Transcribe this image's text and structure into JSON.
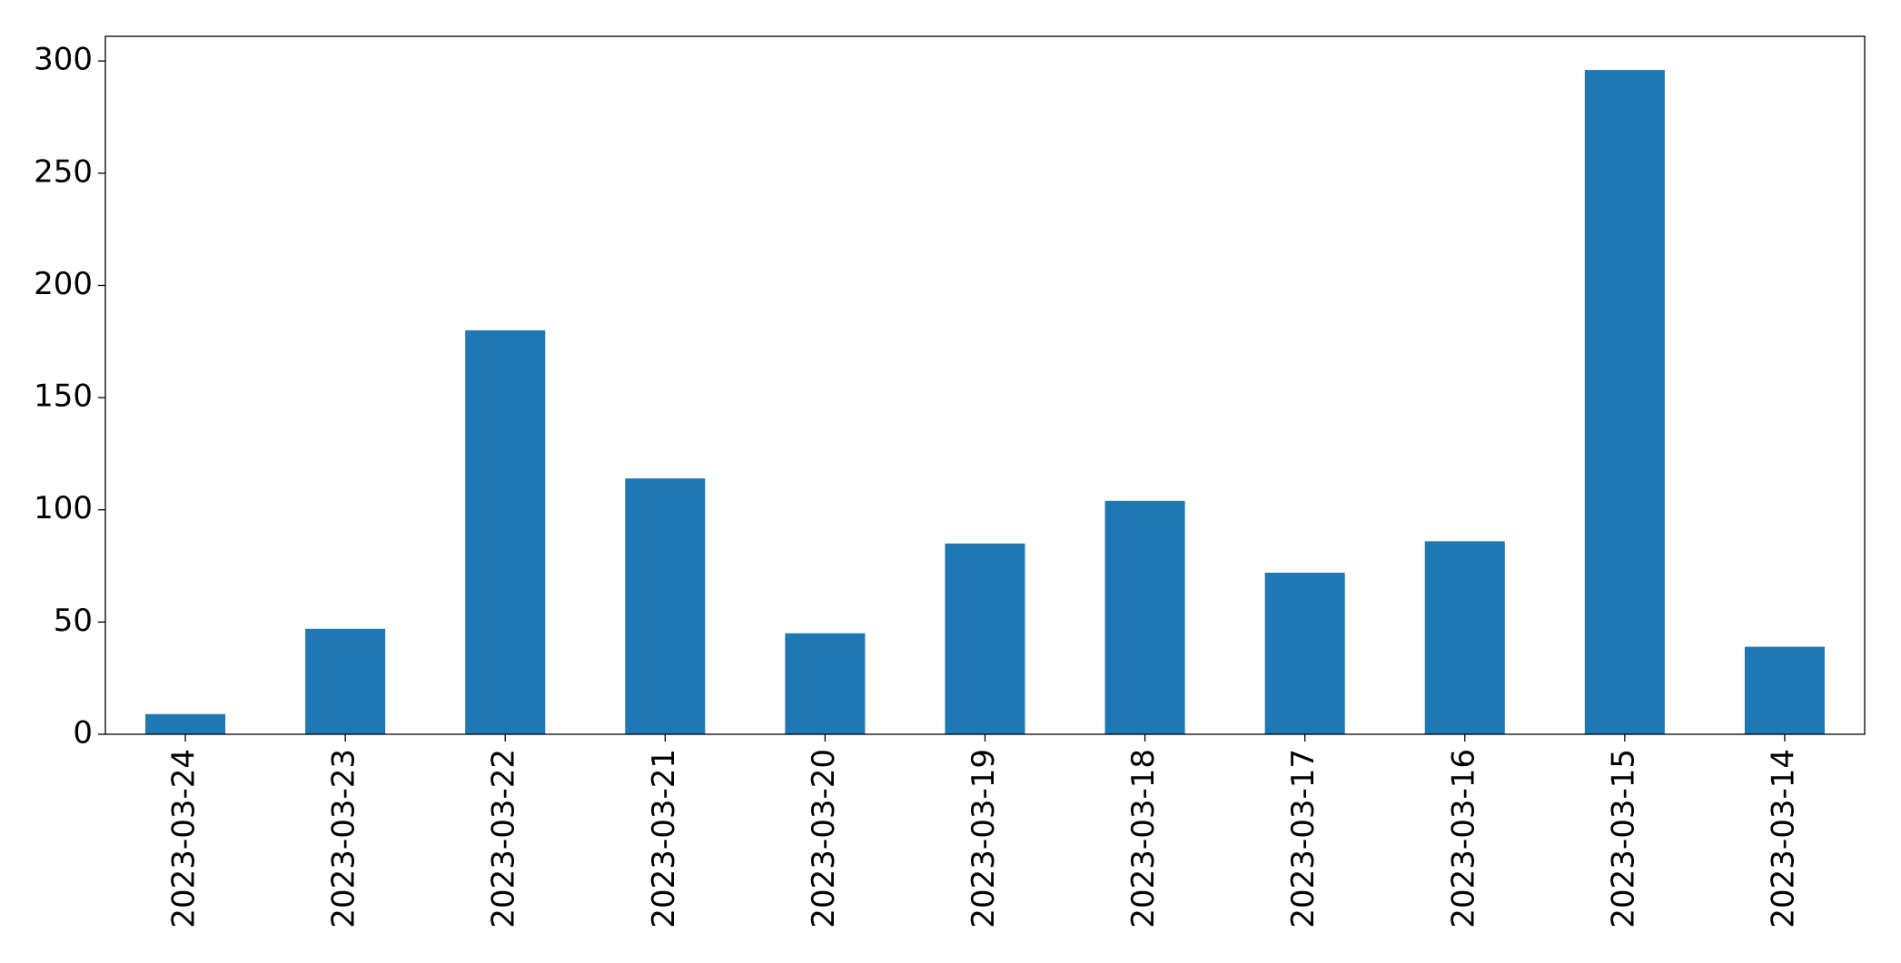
{
  "chart_data": {
    "type": "bar",
    "categories": [
      "2023-03-24",
      "2023-03-23",
      "2023-03-22",
      "2023-03-21",
      "2023-03-20",
      "2023-03-19",
      "2023-03-18",
      "2023-03-17",
      "2023-03-16",
      "2023-03-15",
      "2023-03-14"
    ],
    "values": [
      9,
      47,
      180,
      114,
      45,
      85,
      104,
      72,
      86,
      296,
      39
    ],
    "color": "#1f77b4",
    "ylim": [
      0,
      311
    ],
    "yticks": [
      0,
      50,
      100,
      150,
      200,
      250,
      300
    ],
    "grid": false
  }
}
